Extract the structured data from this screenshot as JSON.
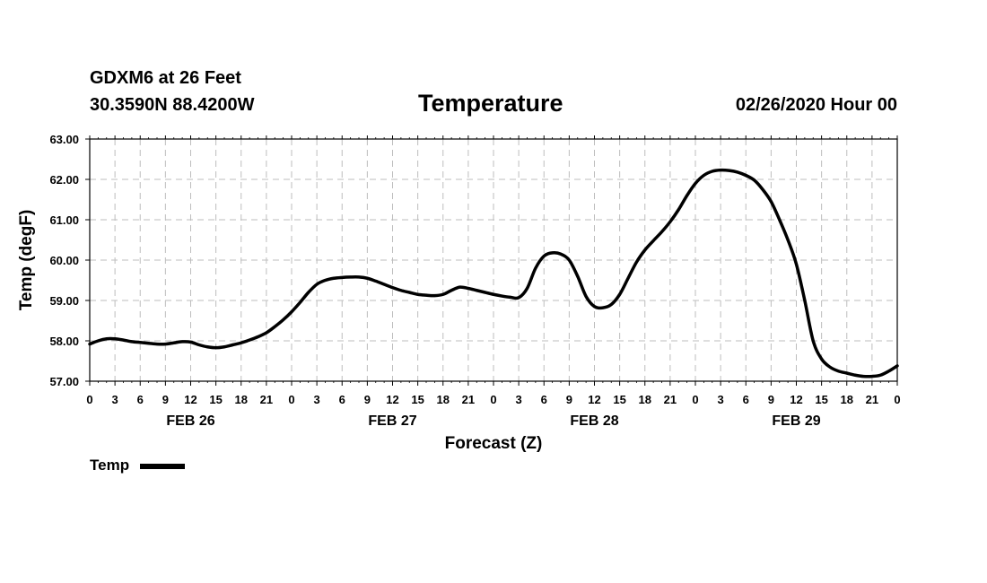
{
  "header": {
    "station": "GDXM6 at 26 Feet",
    "coordinates": "30.3590N 88.4200W",
    "datetime": "02/26/2020 Hour 00"
  },
  "chart_data": {
    "type": "line",
    "title": "Temperature",
    "xlabel": "Forecast (Z)",
    "ylabel": "Temp (degF)",
    "ylim": [
      57.0,
      63.0
    ],
    "xlim": [
      0,
      96
    ],
    "yticks": [
      "57.00",
      "58.00",
      "59.00",
      "60.00",
      "61.00",
      "62.00",
      "63.00"
    ],
    "ytick_values": [
      57,
      58,
      59,
      60,
      61,
      62,
      63
    ],
    "xtick_labels": [
      "0",
      "3",
      "6",
      "9",
      "12",
      "15",
      "18",
      "21",
      "0",
      "3",
      "6",
      "9",
      "12",
      "15",
      "18",
      "21",
      "0",
      "3",
      "6",
      "9",
      "12",
      "15",
      "18",
      "21",
      "0",
      "3",
      "6",
      "9",
      "12",
      "15",
      "18",
      "21",
      "0"
    ],
    "day_labels": [
      {
        "label": "FEB 26",
        "hour": 12
      },
      {
        "label": "FEB 27",
        "hour": 36
      },
      {
        "label": "FEB 28",
        "hour": 60
      },
      {
        "label": "FEB 29",
        "hour": 84
      }
    ],
    "grid": true,
    "legend_position": "bottom-left",
    "series": [
      {
        "name": "Temp",
        "color": "#000000",
        "x": [
          0,
          1,
          2,
          3,
          4,
          5,
          6,
          7,
          8,
          9,
          10,
          11,
          12,
          13,
          14,
          15,
          16,
          17,
          18,
          19,
          20,
          21,
          22,
          23,
          24,
          25,
          26,
          27,
          28,
          29,
          30,
          31,
          32,
          33,
          34,
          35,
          36,
          37,
          38,
          39,
          40,
          41,
          42,
          43,
          44,
          45,
          46,
          47,
          48,
          49,
          50,
          51,
          52,
          53,
          54,
          55,
          56,
          57,
          58,
          59,
          60,
          61,
          62,
          63,
          64,
          65,
          66,
          67,
          68,
          69,
          70,
          71,
          72,
          73,
          74,
          75,
          76,
          77,
          78,
          79,
          80,
          81,
          82,
          83,
          84,
          85,
          86,
          87,
          88,
          89,
          90,
          91,
          92,
          93,
          94,
          95,
          96
        ],
        "values": [
          57.92,
          58.0,
          58.05,
          58.05,
          58.02,
          57.98,
          57.96,
          57.94,
          57.92,
          57.92,
          57.95,
          57.98,
          57.97,
          57.9,
          57.85,
          57.83,
          57.85,
          57.9,
          57.95,
          58.02,
          58.1,
          58.2,
          58.35,
          58.52,
          58.72,
          58.95,
          59.2,
          59.4,
          59.5,
          59.55,
          59.57,
          59.58,
          59.58,
          59.55,
          59.48,
          59.4,
          59.32,
          59.25,
          59.2,
          59.15,
          59.13,
          59.12,
          59.15,
          59.25,
          59.33,
          59.3,
          59.25,
          59.2,
          59.15,
          59.11,
          59.08,
          59.07,
          59.3,
          59.8,
          60.1,
          60.18,
          60.15,
          60.0,
          59.6,
          59.1,
          58.85,
          58.82,
          58.9,
          59.15,
          59.55,
          59.95,
          60.25,
          60.48,
          60.7,
          60.95,
          61.25,
          61.6,
          61.9,
          62.1,
          62.2,
          62.23,
          62.22,
          62.18,
          62.1,
          61.98,
          61.75,
          61.45,
          61.0,
          60.5,
          59.9,
          59.0,
          58.0,
          57.55,
          57.35,
          57.25,
          57.2,
          57.15,
          57.12,
          57.12,
          57.15,
          57.25,
          57.38
        ]
      }
    ]
  }
}
